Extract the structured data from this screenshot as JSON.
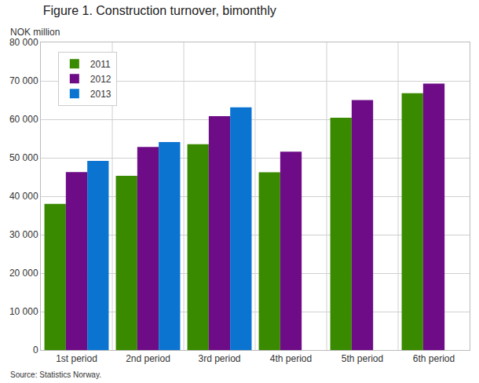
{
  "chart_data": {
    "type": "bar",
    "title": "Figure 1. Construction turnover, bimonthly",
    "ylabel": "NOK million",
    "source": "Source: Statistics Norway.",
    "categories": [
      "1st period",
      "2nd period",
      "3rd period",
      "4th period",
      "5th period",
      "6th period"
    ],
    "series": [
      {
        "name": "2011",
        "color": "#3a8a00",
        "values": [
          38000,
          45300,
          53500,
          46200,
          60400,
          66800
        ]
      },
      {
        "name": "2012",
        "color": "#6e0c87",
        "values": [
          46300,
          52800,
          60800,
          51600,
          65000,
          69300
        ]
      },
      {
        "name": "2013",
        "color": "#0b74d1",
        "values": [
          49200,
          54100,
          63100,
          null,
          null,
          null
        ]
      }
    ],
    "ylim": [
      0,
      80000
    ],
    "yticks": [
      0,
      {
        "value": 10000,
        "label": "10 000"
      },
      {
        "value": 20000,
        "label": "20 000"
      },
      {
        "value": 30000,
        "label": "30 000"
      },
      {
        "value": 40000,
        "label": "40 000"
      },
      {
        "value": 50000,
        "label": "50 000"
      },
      {
        "value": 60000,
        "label": "60 000"
      },
      {
        "value": 70000,
        "label": "70 000"
      },
      {
        "value": 80000,
        "label": "80 000"
      }
    ],
    "grid": true,
    "legend": "upper left"
  }
}
